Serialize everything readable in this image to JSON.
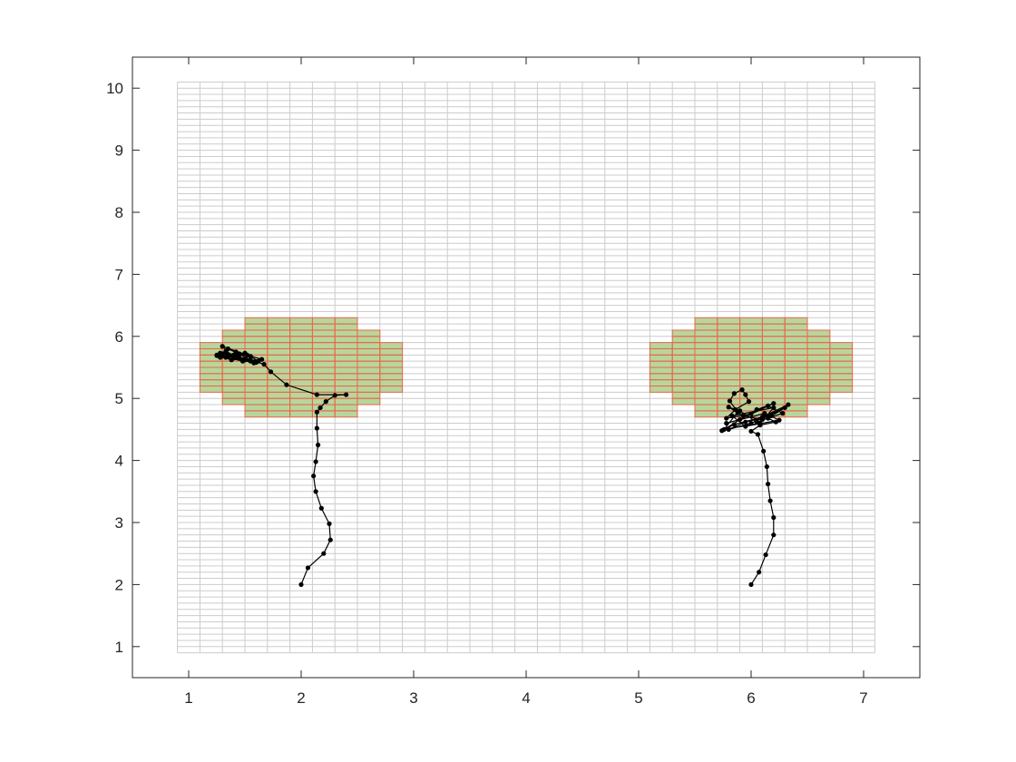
{
  "chart_data": {
    "type": "scatter",
    "title": "",
    "xlabel": "",
    "ylabel": "",
    "xlim": [
      0.5,
      7.5
    ],
    "ylim": [
      0.5,
      10.5
    ],
    "xticks": [
      "1",
      "2",
      "3",
      "4",
      "5",
      "6",
      "7"
    ],
    "yticks": [
      "1",
      "2",
      "3",
      "4",
      "5",
      "6",
      "7",
      "8",
      "9",
      "10"
    ],
    "grid": {
      "x_range": [
        0.9,
        7.1
      ],
      "y_range": [
        0.9,
        10.1
      ],
      "cell_width": 0.2,
      "cell_height": 0.1,
      "line_color": "#cccccc"
    },
    "regions": [
      {
        "fill_color": "#b8d69c",
        "edge_color": "#e8664a",
        "cell_rows": [
          {
            "y": [
              6.1,
              6.3
            ],
            "x": [
              1.5,
              2.5
            ]
          },
          {
            "y": [
              5.9,
              6.1
            ],
            "x": [
              1.3,
              2.7
            ]
          },
          {
            "y": [
              5.1,
              5.9
            ],
            "x": [
              1.1,
              2.9
            ]
          },
          {
            "y": [
              4.9,
              5.1
            ],
            "x": [
              1.3,
              2.7
            ]
          },
          {
            "y": [
              4.7,
              4.9
            ],
            "x": [
              1.5,
              2.5
            ]
          }
        ]
      },
      {
        "fill_color": "#b8d69c",
        "edge_color": "#e8664a",
        "cell_rows": [
          {
            "y": [
              6.1,
              6.3
            ],
            "x": [
              5.5,
              6.5
            ]
          },
          {
            "y": [
              5.9,
              6.1
            ],
            "x": [
              5.3,
              6.7
            ]
          },
          {
            "y": [
              5.1,
              5.9
            ],
            "x": [
              5.1,
              6.9
            ]
          },
          {
            "y": [
              4.9,
              5.1
            ],
            "x": [
              5.3,
              6.7
            ]
          },
          {
            "y": [
              4.7,
              4.9
            ],
            "x": [
              5.5,
              6.5
            ]
          }
        ]
      }
    ],
    "series": [
      {
        "color": "#000000",
        "points": [
          [
            2.0,
            2.0
          ],
          [
            2.06,
            2.27
          ],
          [
            2.2,
            2.5
          ],
          [
            2.26,
            2.72
          ],
          [
            2.25,
            2.98
          ],
          [
            2.18,
            3.23
          ],
          [
            2.13,
            3.5
          ],
          [
            2.11,
            3.75
          ],
          [
            2.13,
            3.98
          ],
          [
            2.15,
            4.25
          ],
          [
            2.14,
            4.52
          ],
          [
            2.14,
            4.78
          ],
          [
            2.17,
            4.85
          ],
          [
            2.22,
            4.95
          ],
          [
            2.3,
            5.05
          ],
          [
            2.4,
            5.06
          ],
          [
            2.14,
            5.06
          ],
          [
            1.87,
            5.22
          ],
          [
            1.73,
            5.43
          ],
          [
            1.67,
            5.55
          ],
          [
            1.55,
            5.62
          ],
          [
            1.42,
            5.68
          ],
          [
            1.3,
            5.72
          ],
          [
            1.25,
            5.69
          ],
          [
            1.33,
            5.76
          ],
          [
            1.45,
            5.65
          ],
          [
            1.55,
            5.6
          ],
          [
            1.4,
            5.7
          ],
          [
            1.28,
            5.73
          ],
          [
            1.5,
            5.62
          ],
          [
            1.6,
            5.58
          ],
          [
            1.35,
            5.8
          ],
          [
            1.3,
            5.68
          ],
          [
            1.45,
            5.72
          ],
          [
            1.55,
            5.68
          ],
          [
            1.38,
            5.62
          ],
          [
            1.25,
            5.7
          ],
          [
            1.48,
            5.6
          ],
          [
            1.65,
            5.63
          ],
          [
            1.42,
            5.75
          ],
          [
            1.33,
            5.66
          ],
          [
            1.52,
            5.7
          ],
          [
            1.3,
            5.84
          ],
          [
            1.4,
            5.65
          ],
          [
            1.58,
            5.57
          ],
          [
            1.35,
            5.7
          ],
          [
            1.5,
            5.73
          ],
          [
            1.62,
            5.6
          ],
          [
            1.28,
            5.66
          ]
        ]
      },
      {
        "color": "#000000",
        "points": [
          [
            6.0,
            2.0
          ],
          [
            6.07,
            2.2
          ],
          [
            6.13,
            2.48
          ],
          [
            6.2,
            2.8
          ],
          [
            6.2,
            3.08
          ],
          [
            6.17,
            3.35
          ],
          [
            6.15,
            3.62
          ],
          [
            6.14,
            3.9
          ],
          [
            6.11,
            4.15
          ],
          [
            6.06,
            4.42
          ],
          [
            6.0,
            4.47
          ],
          [
            6.08,
            4.57
          ],
          [
            6.22,
            4.62
          ],
          [
            6.15,
            4.68
          ],
          [
            6.3,
            4.85
          ],
          [
            6.0,
            4.6
          ],
          [
            5.8,
            4.5
          ],
          [
            5.95,
            4.62
          ],
          [
            6.18,
            4.72
          ],
          [
            6.33,
            4.9
          ],
          [
            6.1,
            4.7
          ],
          [
            5.85,
            4.58
          ],
          [
            5.74,
            4.48
          ],
          [
            6.05,
            4.82
          ],
          [
            6.2,
            4.92
          ],
          [
            5.9,
            4.66
          ],
          [
            5.78,
            4.6
          ],
          [
            6.12,
            4.76
          ],
          [
            6.25,
            4.65
          ],
          [
            5.95,
            4.55
          ],
          [
            5.83,
            4.72
          ],
          [
            6.2,
            4.85
          ],
          [
            6.08,
            4.6
          ],
          [
            5.76,
            4.5
          ],
          [
            5.88,
            4.78
          ],
          [
            5.81,
            4.96
          ],
          [
            5.85,
            5.08
          ],
          [
            5.92,
            5.14
          ],
          [
            5.95,
            5.06
          ],
          [
            5.98,
            4.95
          ],
          [
            5.86,
            4.82
          ],
          [
            5.78,
            4.68
          ],
          [
            6.0,
            4.75
          ],
          [
            6.15,
            4.88
          ],
          [
            6.28,
            4.76
          ],
          [
            6.05,
            4.62
          ],
          [
            5.9,
            4.8
          ],
          [
            5.8,
            4.86
          ],
          [
            5.93,
            4.72
          ],
          [
            6.1,
            4.66
          ]
        ]
      }
    ]
  }
}
